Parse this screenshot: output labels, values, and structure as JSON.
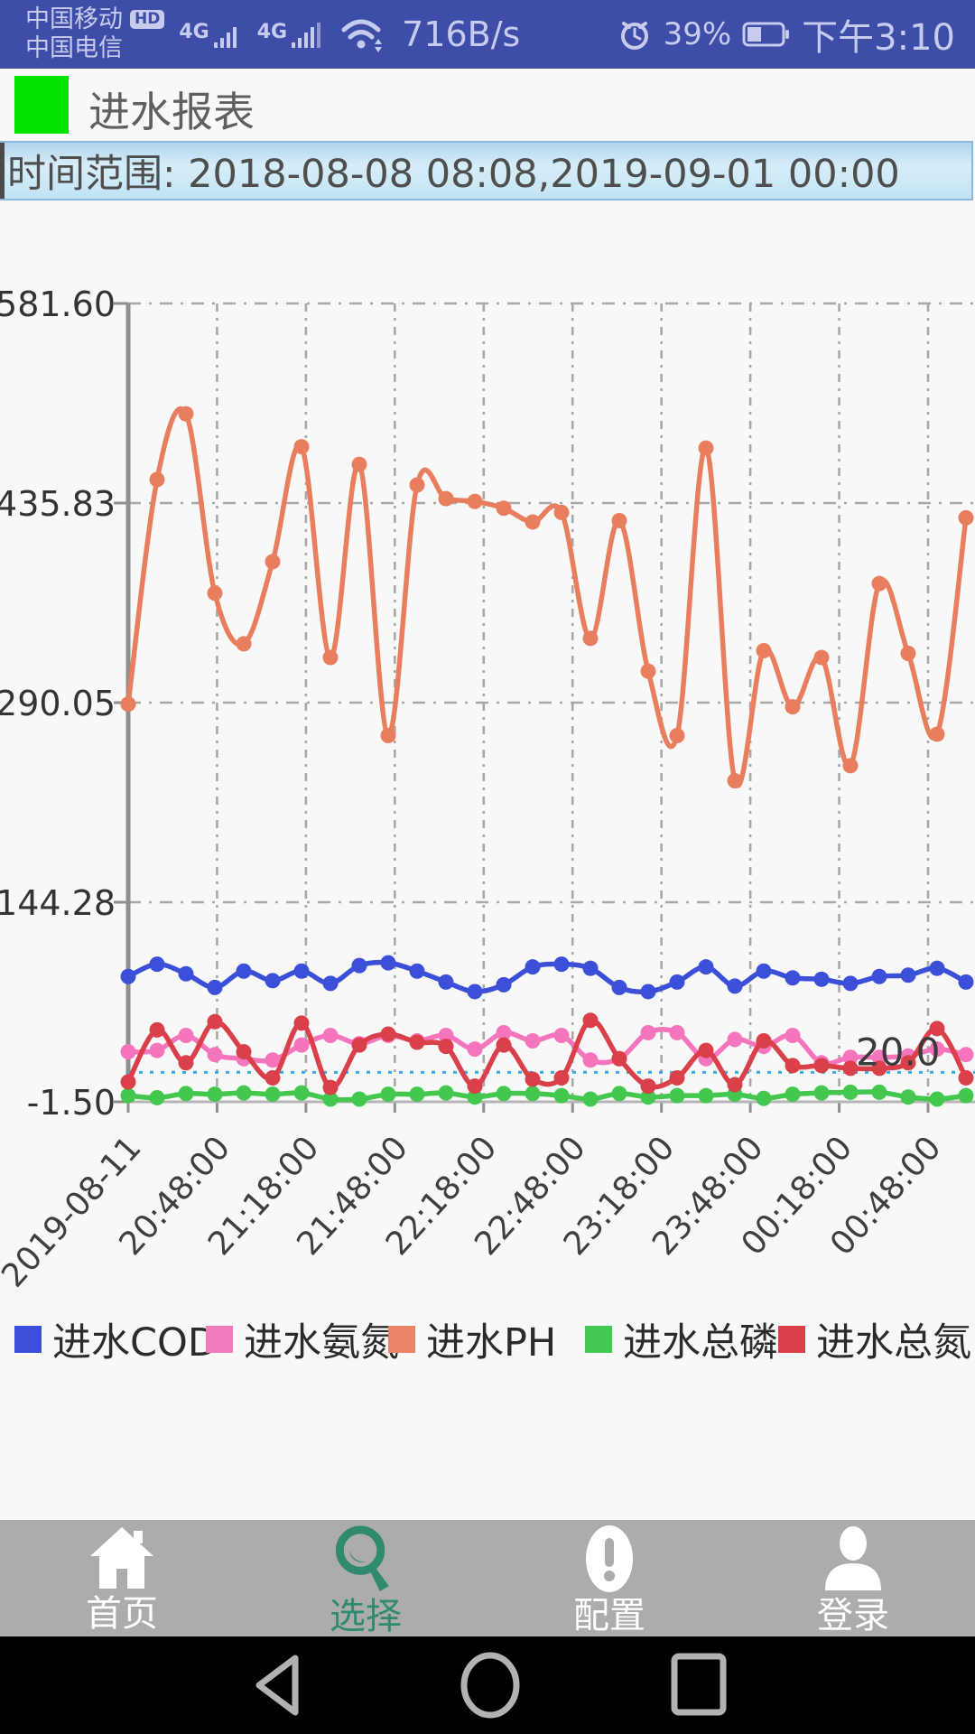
{
  "status_bar": {
    "carrier1": "中国移动",
    "carrier2": "中国电信",
    "hd_badge": "HD",
    "network1": "4G",
    "network2": "4G",
    "speed": "716B/s",
    "battery_percent": "39%",
    "battery_level": 0.39,
    "time": "下午3:10"
  },
  "title_bar": {
    "title": "进水报表",
    "accent_color": "#00E400"
  },
  "time_range": {
    "text": "时间范围: 2018-08-08 08:08,2019-09-01 00:00"
  },
  "chart_data": {
    "type": "line",
    "title": "",
    "xlabel": "",
    "ylabel": "",
    "x_labels": [
      "2019-08-11",
      "20:48:00",
      "21:18:00",
      "21:48:00",
      "22:18:00",
      "22:48:00",
      "23:18:00",
      "23:48:00",
      "00:18:00",
      "00:48:00"
    ],
    "y_ticks": [
      581.6,
      435.83,
      290.05,
      144.28,
      -1.5
    ],
    "ylim": [
      -1.5,
      581.6
    ],
    "grid": true,
    "legend_position": "bottom",
    "threshold": {
      "value": 20.0,
      "label": "20.0",
      "color": "#35ADE3"
    },
    "series": [
      {
        "name": "进水COD",
        "color": "#3B4FD8",
        "values": [
          90,
          99,
          92,
          82,
          94,
          87,
          94,
          85,
          98,
          100,
          94,
          86,
          79,
          84,
          97,
          99,
          96,
          82,
          79,
          86,
          97,
          83,
          94,
          89,
          88,
          85,
          90,
          91,
          96,
          86
        ]
      },
      {
        "name": "进水氨氮",
        "color": "#F575BD",
        "values": [
          35,
          36,
          47,
          33,
          30,
          29,
          40,
          47,
          41,
          47,
          43,
          47,
          37,
          49,
          43,
          47,
          29,
          30,
          49,
          49,
          30,
          44,
          39,
          47,
          27,
          31,
          31,
          32,
          37,
          33
        ]
      },
      {
        "name": "进水PH",
        "color": "#E87E5E",
        "values": [
          289,
          453,
          501,
          370,
          333,
          393,
          477,
          323,
          464,
          266,
          449,
          439,
          437,
          432,
          422,
          429,
          337,
          423,
          313,
          266,
          476,
          233,
          328,
          287,
          323,
          244,
          377,
          326,
          267,
          425
        ]
      },
      {
        "name": "进水总磷",
        "color": "#44C74F",
        "values": [
          3,
          1.5,
          4.5,
          4,
          5,
          4,
          5,
          0.5,
          0.5,
          4,
          4,
          5,
          2,
          4.5,
          4.5,
          3,
          0.5,
          4.5,
          2,
          3,
          3,
          4,
          1,
          4,
          5,
          5.5,
          5.5,
          2,
          0.5,
          3
        ]
      },
      {
        "name": "进水总氮",
        "color": "#D9404A",
        "values": [
          13,
          51,
          27,
          57,
          35,
          16,
          56,
          9,
          40,
          48,
          42,
          39,
          10,
          40,
          15,
          16,
          58,
          30,
          10,
          16,
          36,
          11,
          43,
          25,
          25,
          23,
          23,
          27,
          52,
          16
        ]
      }
    ]
  },
  "legend": {
    "items": [
      {
        "label": "进水COD",
        "color": "#3B4FD8"
      },
      {
        "label": "进水氨氮",
        "color": "#F27BBD"
      },
      {
        "label": "进水PH",
        "color": "#EC8366"
      },
      {
        "label": "进水总磷",
        "color": "#43C854"
      },
      {
        "label": "进水总氮",
        "color": "#D9404A"
      }
    ]
  },
  "bottom_nav": {
    "active_color": "#2F8A70",
    "inactive_color": "#FFFFFF",
    "items": [
      {
        "label": "首页",
        "icon": "home-icon",
        "active": false
      },
      {
        "label": "选择",
        "icon": "magnifier-icon",
        "active": true
      },
      {
        "label": "配置",
        "icon": "exclamation-icon",
        "active": false
      },
      {
        "label": "登录",
        "icon": "person-icon",
        "active": false
      }
    ]
  },
  "android_nav": {
    "icons": [
      "back",
      "home",
      "recents"
    ]
  }
}
